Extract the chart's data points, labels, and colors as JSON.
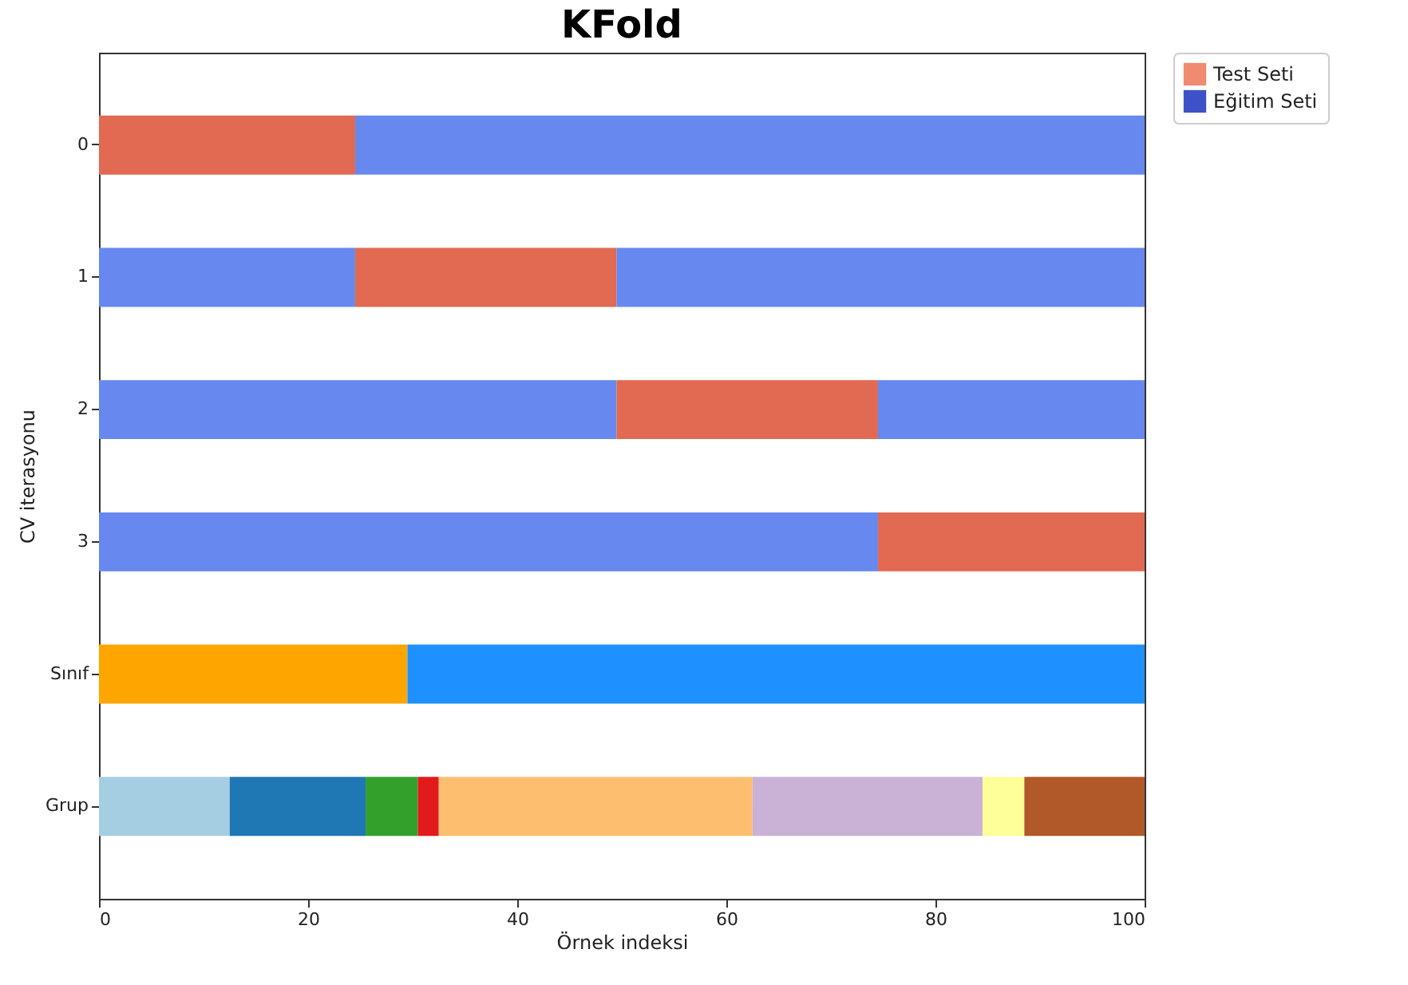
{
  "chart_data": {
    "type": "bar",
    "title": "KFold",
    "xlabel": "Örnek indeksi",
    "ylabel": "CV iterasyonu",
    "orientation": "horizontal",
    "stacked": true,
    "categories": [
      "0",
      "1",
      "2",
      "3",
      "Sınıf",
      "Grup"
    ],
    "xlim": [
      0,
      100
    ],
    "xticks": [
      0,
      20,
      40,
      60,
      80,
      100
    ],
    "grid": false,
    "legend": "top right",
    "series": [
      {
        "values": [
          24.5,
          24.5,
          49.5,
          74.5,
          29.5,
          12.5
        ],
        "colors": [
          "#e26952",
          "#6788ee",
          "#6788ee",
          "#6788ee",
          "#ffa500",
          "#a6cee3"
        ]
      },
      {
        "values": [
          75.5,
          25,
          25,
          25.5,
          70.5,
          13
        ],
        "colors": [
          "#6788ee",
          "#e26952",
          "#e26952",
          "#e26952",
          "#1e90ff",
          "#1f78b4"
        ]
      },
      {
        "values": [
          null,
          50.5,
          25.5,
          null,
          null,
          5
        ],
        "colors": [
          null,
          "#6788ee",
          "#6788ee",
          null,
          null,
          "#33a02c"
        ]
      },
      {
        "values": [
          null,
          null,
          null,
          null,
          null,
          2
        ],
        "colors": [
          null,
          null,
          null,
          null,
          null,
          "#e31a1c"
        ]
      },
      {
        "values": [
          null,
          null,
          null,
          null,
          null,
          30
        ],
        "colors": [
          null,
          null,
          null,
          null,
          null,
          "#fdbf6f"
        ]
      },
      {
        "values": [
          null,
          null,
          null,
          null,
          null,
          22
        ],
        "colors": [
          null,
          null,
          null,
          null,
          null,
          "#cab2d6"
        ]
      },
      {
        "values": [
          null,
          null,
          null,
          null,
          null,
          4
        ],
        "colors": [
          null,
          null,
          null,
          null,
          null,
          "#ffff99"
        ]
      },
      {
        "values": [
          null,
          null,
          null,
          null,
          null,
          11.5
        ],
        "colors": [
          null,
          null,
          null,
          null,
          null,
          "#b15928"
        ]
      },
      {
        "name": "Test Seti",
        "color": "#f08a70",
        "values": [
          null,
          null,
          null,
          null,
          null,
          null
        ]
      },
      {
        "name": "Eğitim Seti",
        "color": "#3f51c8",
        "values": [
          null,
          null,
          null,
          null,
          null,
          null
        ]
      }
    ]
  }
}
